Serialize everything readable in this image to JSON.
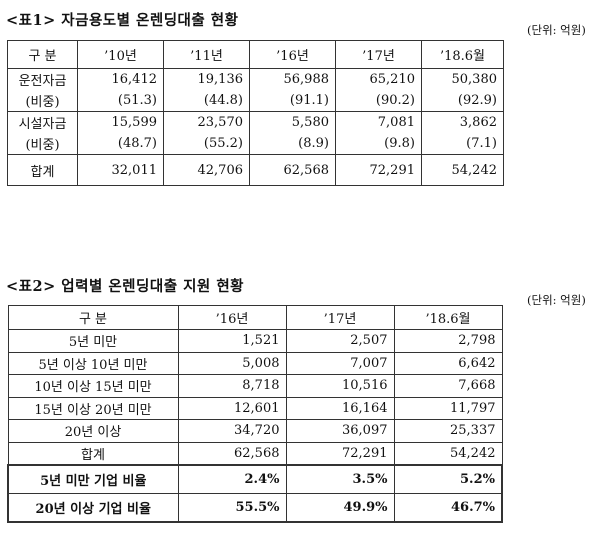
{
  "table1": {
    "title": "<표1> 자금용도별 온렌딩대출 현황",
    "unit": "(단위: 억원)",
    "headers": [
      "구 분",
      "’10년",
      "’11년",
      "’16년",
      "’17년",
      "’18.6월"
    ],
    "rows": [
      {
        "label": "운전자금",
        "values": [
          "16,412",
          "19,136",
          "56,988",
          "65,210",
          "50,380"
        ]
      },
      {
        "label": "(비중)",
        "values": [
          "(51.3)",
          "(44.8)",
          "(91.1)",
          "(90.2)",
          "(92.9)"
        ]
      },
      {
        "label": "시설자금",
        "values": [
          "15,599",
          "23,570",
          "5,580",
          "7,081",
          "3,862"
        ]
      },
      {
        "label": "(비중)",
        "values": [
          "(48.7)",
          "(55.2)",
          "(8.9)",
          "(9.8)",
          "(7.1)"
        ]
      },
      {
        "label": "합계",
        "values": [
          "32,011",
          "42,706",
          "62,568",
          "72,291",
          "54,242"
        ]
      }
    ]
  },
  "table2": {
    "title": "<표2> 업력별 온렌딩대출 지원 현황",
    "unit": "(단위: 억원)",
    "headers": [
      "구 분",
      "’16년",
      "’17년",
      "’18.6월"
    ],
    "rows": [
      {
        "label": "5년 미만",
        "values": [
          "1,521",
          "2,507",
          "2,798"
        ]
      },
      {
        "label": "5년 이상 10년 미만",
        "values": [
          "5,008",
          "7,007",
          "6,642"
        ]
      },
      {
        "label": "10년 이상 15년 미만",
        "values": [
          "8,718",
          "10,516",
          "7,668"
        ]
      },
      {
        "label": "15년 이상 20년 미만",
        "values": [
          "12,601",
          "16,164",
          "11,797"
        ]
      },
      {
        "label": "20년 이상",
        "values": [
          "34,720",
          "36,097",
          "25,337"
        ]
      },
      {
        "label": "합계",
        "values": [
          "62,568",
          "72,291",
          "54,242"
        ]
      },
      {
        "label": "5년 미만 기업 비율",
        "values": [
          "2.4%",
          "3.5%",
          "5.2%"
        ]
      },
      {
        "label": "20년 이상 기업 비율",
        "values": [
          "55.5%",
          "49.9%",
          "46.7%"
        ]
      }
    ]
  }
}
